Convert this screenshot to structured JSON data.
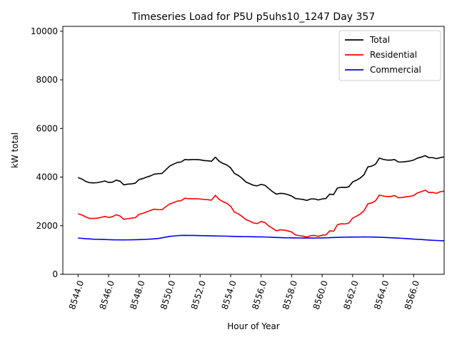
{
  "chart_data": {
    "type": "line",
    "title": "Timeseries Load for P5U p5uhs10_1247  Day 357",
    "xlabel": "Hour of Year",
    "ylabel": "kW total",
    "xlim": [
      8543.0,
      8568.0
    ],
    "ylim": [
      0,
      10200
    ],
    "xticks": [
      8544,
      8546,
      8548,
      8550,
      8552,
      8554,
      8556,
      8558,
      8560,
      8562,
      8564,
      8566
    ],
    "xtick_labels": [
      "8544.0",
      "8546.0",
      "8548.0",
      "8550.0",
      "8552.0",
      "8554.0",
      "8556.0",
      "8558.0",
      "8560.0",
      "8562.0",
      "8564.0",
      "8566.0"
    ],
    "yticks": [
      0,
      2000,
      4000,
      6000,
      8000,
      10000
    ],
    "ytick_labels": [
      "0",
      "2000",
      "4000",
      "6000",
      "8000",
      "10000"
    ],
    "legend_position": "top-right",
    "x": [
      8544.0,
      8544.25,
      8544.5,
      8544.75,
      8545.0,
      8545.25,
      8545.5,
      8545.75,
      8546.0,
      8546.25,
      8546.5,
      8546.75,
      8547.0,
      8547.25,
      8547.5,
      8547.75,
      8548.0,
      8548.25,
      8548.5,
      8548.75,
      8549.0,
      8549.25,
      8549.5,
      8549.75,
      8550.0,
      8550.25,
      8550.5,
      8550.75,
      8551.0,
      8551.25,
      8551.5,
      8551.75,
      8552.0,
      8552.25,
      8552.5,
      8552.75,
      8553.0,
      8553.25,
      8553.5,
      8553.75,
      8554.0,
      8554.25,
      8554.5,
      8554.75,
      8555.0,
      8555.25,
      8555.5,
      8555.75,
      8556.0,
      8556.25,
      8556.5,
      8556.75,
      8557.0,
      8557.25,
      8557.5,
      8557.75,
      8558.0,
      8558.25,
      8558.5,
      8558.75,
      8559.0,
      8559.25,
      8559.5,
      8559.75,
      8560.0,
      8560.25,
      8560.5,
      8560.75,
      8561.0,
      8561.25,
      8561.5,
      8561.75,
      8562.0,
      8562.25,
      8562.5,
      8562.75,
      8563.0,
      8563.25,
      8563.5,
      8563.75,
      8564.0,
      8564.25,
      8564.5,
      8564.75,
      8565.0,
      8565.25,
      8565.5,
      8565.75,
      8566.0,
      8566.25,
      8566.5,
      8566.75,
      8567.0,
      8567.25,
      8567.5,
      8567.75,
      8568.0
    ],
    "series": [
      {
        "name": "Total",
        "color": "#000000",
        "values": [
          3980,
          3920,
          3820,
          3770,
          3760,
          3770,
          3800,
          3840,
          3780,
          3790,
          3870,
          3830,
          3680,
          3710,
          3720,
          3750,
          3900,
          3940,
          4000,
          4050,
          4120,
          4140,
          4150,
          4300,
          4450,
          4530,
          4600,
          4620,
          4720,
          4710,
          4720,
          4720,
          4710,
          4680,
          4670,
          4650,
          4820,
          4650,
          4560,
          4500,
          4380,
          4150,
          4070,
          3950,
          3800,
          3730,
          3660,
          3640,
          3700,
          3660,
          3530,
          3400,
          3300,
          3330,
          3320,
          3280,
          3220,
          3120,
          3100,
          3080,
          3040,
          3100,
          3100,
          3060,
          3100,
          3120,
          3300,
          3280,
          3550,
          3580,
          3570,
          3600,
          3800,
          3870,
          3960,
          4100,
          4420,
          4450,
          4530,
          4780,
          4730,
          4700,
          4700,
          4720,
          4620,
          4620,
          4640,
          4660,
          4700,
          4780,
          4820,
          4880,
          4800,
          4800,
          4760,
          4800,
          4830
        ]
      },
      {
        "name": "Residential",
        "color": "#ff0000",
        "values": [
          2490,
          2440,
          2360,
          2300,
          2300,
          2310,
          2340,
          2380,
          2340,
          2370,
          2450,
          2400,
          2260,
          2290,
          2310,
          2330,
          2470,
          2510,
          2570,
          2630,
          2680,
          2660,
          2660,
          2780,
          2890,
          2950,
          3010,
          3030,
          3130,
          3110,
          3110,
          3110,
          3100,
          3080,
          3070,
          3050,
          3250,
          3080,
          2990,
          2920,
          2800,
          2560,
          2490,
          2380,
          2250,
          2190,
          2110,
          2090,
          2170,
          2130,
          1990,
          1890,
          1790,
          1830,
          1820,
          1790,
          1740,
          1620,
          1590,
          1570,
          1530,
          1590,
          1600,
          1560,
          1610,
          1620,
          1790,
          1770,
          2040,
          2080,
          2070,
          2110,
          2310,
          2390,
          2480,
          2620,
          2900,
          2940,
          3020,
          3260,
          3220,
          3200,
          3200,
          3240,
          3150,
          3160,
          3190,
          3210,
          3240,
          3350,
          3400,
          3460,
          3360,
          3370,
          3330,
          3400,
          3420
        ]
      },
      {
        "name": "Commercial",
        "color": "#0000ff",
        "values": [
          1490,
          1480,
          1465,
          1455,
          1445,
          1440,
          1435,
          1430,
          1425,
          1420,
          1418,
          1415,
          1415,
          1418,
          1420,
          1423,
          1428,
          1433,
          1440,
          1448,
          1460,
          1475,
          1500,
          1530,
          1560,
          1575,
          1590,
          1600,
          1602,
          1600,
          1598,
          1595,
          1592,
          1588,
          1585,
          1582,
          1578,
          1575,
          1572,
          1568,
          1562,
          1558,
          1555,
          1552,
          1550,
          1548,
          1545,
          1542,
          1540,
          1535,
          1528,
          1522,
          1515,
          1510,
          1505,
          1502,
          1500,
          1497,
          1495,
          1494,
          1492,
          1492,
          1493,
          1495,
          1498,
          1502,
          1508,
          1514,
          1520,
          1525,
          1528,
          1530,
          1532,
          1534,
          1535,
          1536,
          1535,
          1534,
          1530,
          1525,
          1518,
          1512,
          1505,
          1498,
          1490,
          1480,
          1470,
          1460,
          1450,
          1440,
          1430,
          1420,
          1410,
          1400,
          1392,
          1385,
          1380
        ]
      }
    ]
  }
}
